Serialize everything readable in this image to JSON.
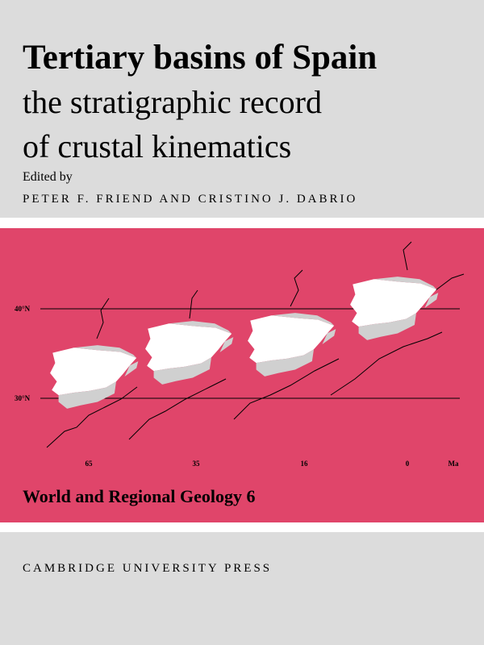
{
  "cover": {
    "title": "Tertiary basins of Spain",
    "subtitle": [
      "the stratigraphic record",
      "of crustal kinematics"
    ],
    "edited_by": "Edited by",
    "editors": "PETER F. FRIEND AND CRISTINO J. DABRIO",
    "map": {
      "latitudes": [
        "40°N",
        "30°N"
      ],
      "ages": [
        "65",
        "35",
        "16",
        "0"
      ],
      "age_unit": "Ma"
    },
    "series": "World and Regional Geology 6",
    "publisher": "CAMBRIDGE UNIVERSITY PRESS"
  }
}
